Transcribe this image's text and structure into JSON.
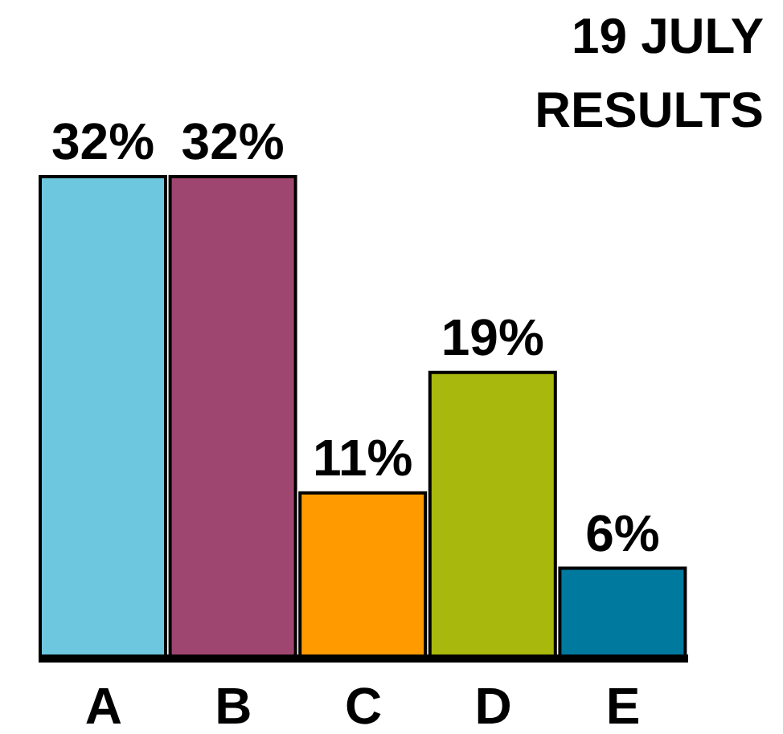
{
  "chart_data": {
    "type": "bar",
    "title": "19 JULY\nRESULTS",
    "categories": [
      "A",
      "B",
      "C",
      "D",
      "E"
    ],
    "values": [
      32,
      32,
      11,
      19,
      6
    ],
    "colors": [
      "#6cc7df",
      "#9e466f",
      "#ff9a00",
      "#a8b80c",
      "#00799e"
    ],
    "value_labels": [
      "32%",
      "32%",
      "11%",
      "19%",
      "6%"
    ]
  }
}
